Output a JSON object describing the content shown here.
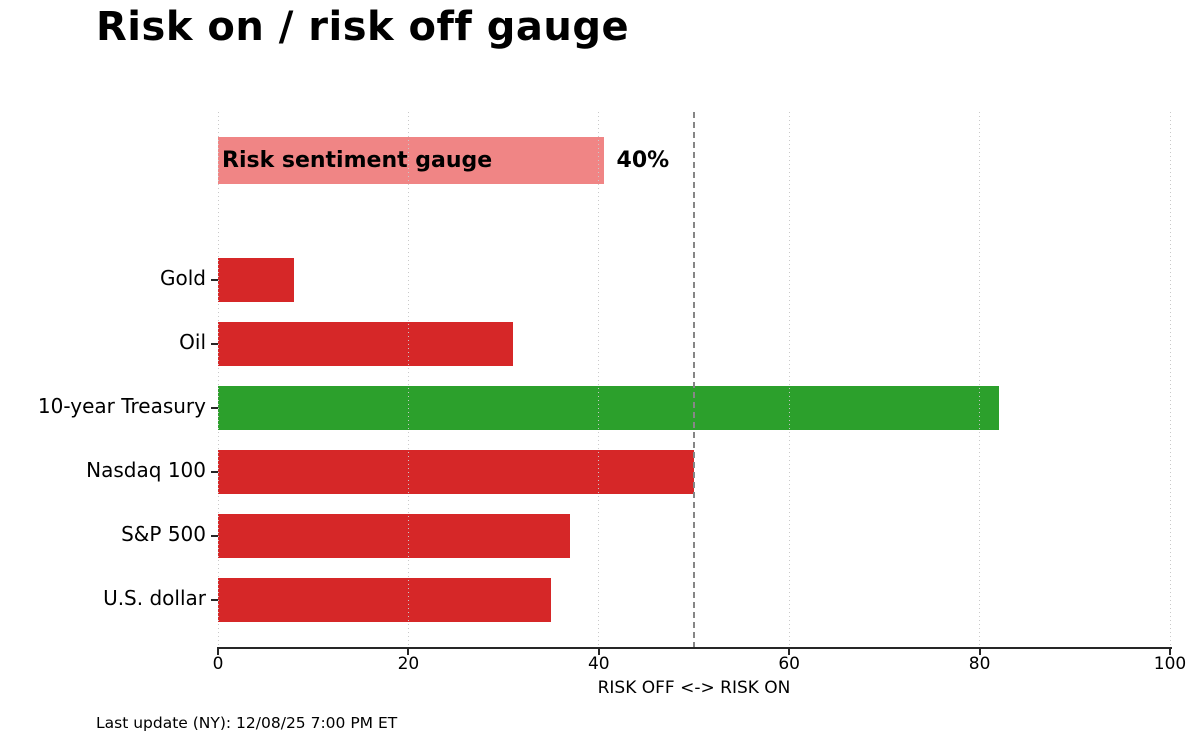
{
  "chart_data": {
    "type": "bar",
    "orientation": "horizontal",
    "title": "Risk on / risk off gauge",
    "xlabel": "RISK OFF <-> RISK ON",
    "xlim": [
      0,
      100
    ],
    "xticks": [
      0,
      20,
      40,
      60,
      80,
      100
    ],
    "grid": {
      "axis": "x",
      "style": "dotted",
      "color": "#c9c9c9"
    },
    "reference_line": {
      "x": 50,
      "style": "dashed",
      "color": "#808080"
    },
    "gauge": {
      "label": "Risk sentiment gauge",
      "value": 40.5,
      "value_label": "40%",
      "color": "#f08585"
    },
    "categories": [
      "Gold",
      "Oil",
      "10-year Treasury",
      "Nasdaq 100",
      "S&P 500",
      "U.S. dollar"
    ],
    "values": [
      8,
      31,
      82,
      50,
      37,
      35
    ],
    "colors": [
      "#d62728",
      "#d62728",
      "#2ca02c",
      "#d62728",
      "#d62728",
      "#d62728"
    ],
    "risk_off_color": "#d62728",
    "risk_on_color": "#2ca02c",
    "footnote": "Last update (NY): 12/08/25 7:00 PM ET",
    "legend": "none"
  }
}
